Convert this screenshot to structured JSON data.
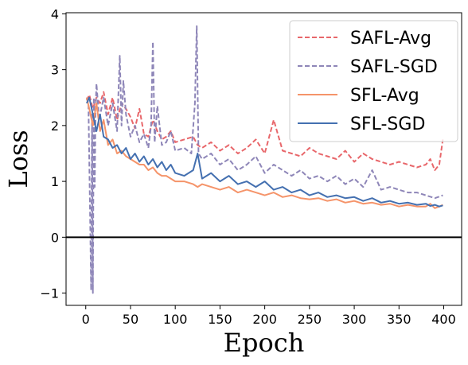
{
  "chart_data": {
    "type": "line",
    "title": "",
    "xlabel": "Epoch",
    "ylabel": "Loss",
    "xlim": [
      -22,
      420
    ],
    "ylim": [
      -1.22,
      4.02
    ],
    "xticks": [
      0,
      50,
      100,
      150,
      200,
      250,
      300,
      350,
      400
    ],
    "yticks": [
      -1,
      0,
      1,
      2,
      3,
      4
    ],
    "grid": false,
    "legend_position": "top-right",
    "hline": {
      "y": 0,
      "color": "#000000"
    },
    "series": [
      {
        "name": "SAFL-Avg",
        "color": "#e8676b",
        "dash": "dashed",
        "x": [
          1,
          4,
          8,
          12,
          16,
          20,
          25,
          30,
          35,
          40,
          45,
          50,
          55,
          60,
          65,
          70,
          75,
          80,
          85,
          90,
          95,
          100,
          110,
          120,
          125,
          130,
          140,
          150,
          160,
          170,
          180,
          190,
          200,
          210,
          220,
          230,
          240,
          250,
          260,
          270,
          280,
          290,
          300,
          310,
          320,
          330,
          340,
          350,
          360,
          370,
          380,
          385,
          390,
          395,
          399
        ],
        "y": [
          2.45,
          2.55,
          2.3,
          2.5,
          2.4,
          2.6,
          2.2,
          2.5,
          2.1,
          2.4,
          2.3,
          2.15,
          1.95,
          2.3,
          1.85,
          1.8,
          2.1,
          1.9,
          1.75,
          1.8,
          1.9,
          1.7,
          1.75,
          1.8,
          1.65,
          1.6,
          1.7,
          1.55,
          1.65,
          1.5,
          1.6,
          1.75,
          1.5,
          2.1,
          1.55,
          1.5,
          1.45,
          1.6,
          1.5,
          1.45,
          1.4,
          1.55,
          1.35,
          1.5,
          1.4,
          1.35,
          1.3,
          1.35,
          1.3,
          1.25,
          1.3,
          1.4,
          1.2,
          1.3,
          1.75
        ]
      },
      {
        "name": "SAFL-SGD",
        "color": "#8e86b8",
        "dash": "dashed",
        "x": [
          1,
          3,
          5,
          6,
          7,
          8,
          9,
          10,
          11,
          12,
          15,
          20,
          25,
          30,
          35,
          38,
          40,
          42,
          45,
          50,
          55,
          60,
          65,
          70,
          73,
          75,
          77,
          80,
          85,
          90,
          95,
          100,
          110,
          118,
          122,
          124,
          126,
          130,
          140,
          150,
          160,
          170,
          180,
          190,
          200,
          210,
          220,
          230,
          240,
          250,
          260,
          270,
          280,
          290,
          300,
          310,
          320,
          330,
          340,
          350,
          360,
          370,
          380,
          390,
          399
        ],
        "y": [
          2.5,
          2.4,
          0.2,
          -0.95,
          2.2,
          -1.0,
          2.5,
          0.9,
          2.3,
          2.75,
          2.1,
          2.5,
          2.0,
          2.4,
          1.9,
          3.25,
          2.0,
          2.8,
          2.2,
          1.8,
          2.0,
          1.7,
          1.85,
          1.6,
          2.0,
          3.5,
          1.7,
          2.35,
          1.65,
          1.7,
          1.9,
          1.55,
          1.6,
          1.5,
          2.4,
          3.78,
          1.5,
          1.4,
          1.5,
          1.3,
          1.4,
          1.2,
          1.3,
          1.45,
          1.15,
          1.3,
          1.2,
          1.1,
          1.2,
          1.05,
          1.1,
          1.0,
          1.1,
          0.95,
          1.05,
          0.9,
          1.2,
          0.85,
          0.9,
          0.85,
          0.8,
          0.8,
          0.75,
          0.7,
          0.75
        ]
      },
      {
        "name": "SFL-Avg",
        "color": "#f5946a",
        "dash": "solid",
        "x": [
          1,
          4,
          8,
          12,
          16,
          20,
          25,
          30,
          35,
          40,
          45,
          50,
          55,
          60,
          65,
          70,
          75,
          80,
          85,
          90,
          95,
          100,
          110,
          120,
          125,
          130,
          140,
          150,
          160,
          170,
          180,
          190,
          200,
          210,
          220,
          230,
          240,
          250,
          260,
          270,
          280,
          290,
          300,
          310,
          320,
          330,
          340,
          350,
          360,
          370,
          380,
          385,
          390,
          395,
          399
        ],
        "y": [
          2.5,
          2.3,
          2.0,
          2.4,
          1.9,
          2.1,
          1.65,
          1.75,
          1.5,
          1.55,
          1.45,
          1.4,
          1.35,
          1.3,
          1.3,
          1.2,
          1.25,
          1.15,
          1.1,
          1.1,
          1.05,
          1.0,
          1.0,
          0.95,
          0.9,
          0.95,
          0.9,
          0.85,
          0.9,
          0.8,
          0.85,
          0.8,
          0.75,
          0.8,
          0.72,
          0.75,
          0.7,
          0.68,
          0.7,
          0.65,
          0.68,
          0.62,
          0.65,
          0.6,
          0.62,
          0.58,
          0.6,
          0.55,
          0.58,
          0.55,
          0.55,
          0.6,
          0.52,
          0.55,
          0.58
        ]
      },
      {
        "name": "SFL-SGD",
        "color": "#4470b0",
        "dash": "solid",
        "x": [
          1,
          4,
          8,
          12,
          16,
          20,
          25,
          30,
          35,
          40,
          45,
          50,
          55,
          60,
          65,
          70,
          75,
          80,
          85,
          90,
          95,
          100,
          110,
          120,
          125,
          130,
          140,
          150,
          160,
          170,
          180,
          190,
          200,
          210,
          220,
          230,
          240,
          250,
          260,
          270,
          280,
          290,
          300,
          310,
          320,
          330,
          340,
          350,
          360,
          370,
          380,
          385,
          390,
          395,
          399
        ],
        "y": [
          2.4,
          2.5,
          2.2,
          1.9,
          2.2,
          1.8,
          1.75,
          1.6,
          1.65,
          1.5,
          1.6,
          1.4,
          1.5,
          1.35,
          1.45,
          1.3,
          1.4,
          1.25,
          1.35,
          1.2,
          1.3,
          1.15,
          1.1,
          1.2,
          1.5,
          1.05,
          1.15,
          1.0,
          1.1,
          0.95,
          1.0,
          0.9,
          1.0,
          0.85,
          0.9,
          0.8,
          0.85,
          0.75,
          0.8,
          0.72,
          0.75,
          0.7,
          0.72,
          0.65,
          0.7,
          0.62,
          0.65,
          0.6,
          0.62,
          0.58,
          0.6,
          0.56,
          0.58,
          0.55,
          0.57
        ]
      }
    ]
  }
}
